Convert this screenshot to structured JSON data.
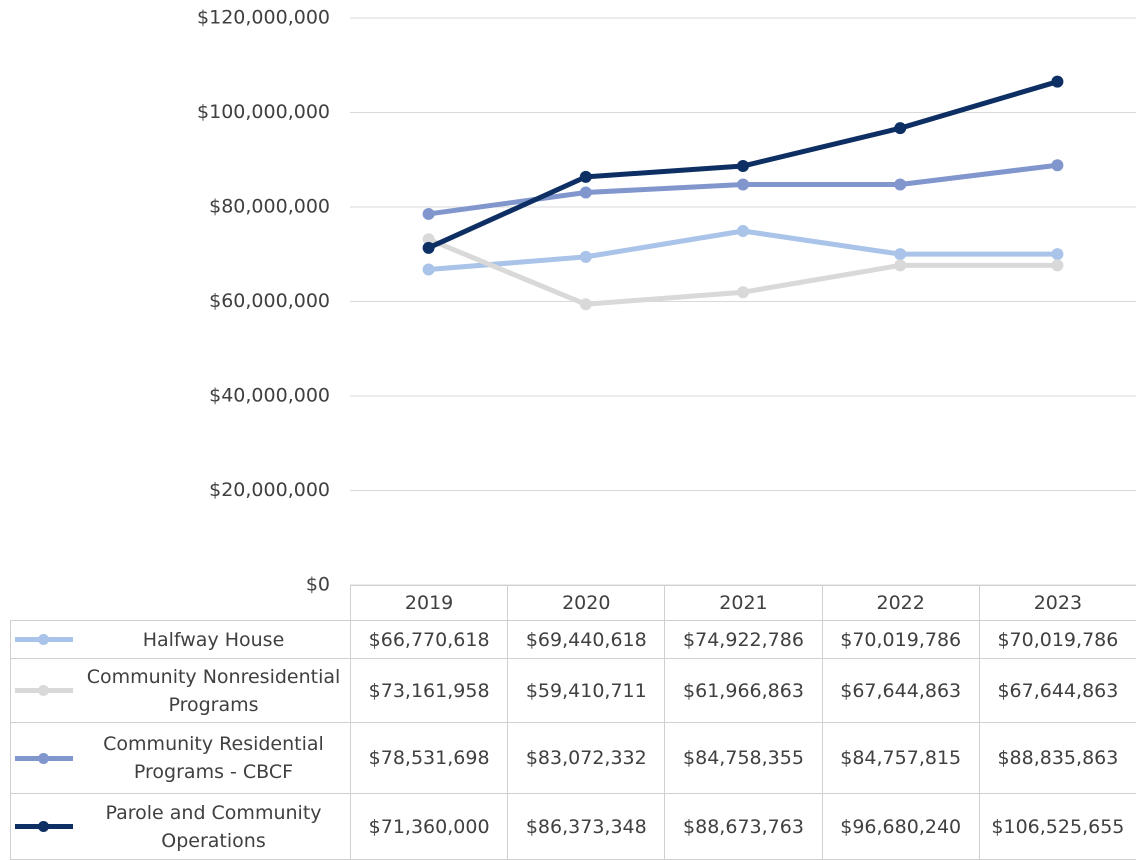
{
  "chart_data": {
    "type": "line",
    "categories": [
      "2019",
      "2020",
      "2021",
      "2022",
      "2023"
    ],
    "series": [
      {
        "name": "Halfway House",
        "color": "#a9c4e8",
        "values": [
          66770618,
          69440618,
          74922786,
          70019786,
          70019786
        ],
        "value_labels": [
          "$66,770,618",
          "$69,440,618",
          "$74,922,786",
          "$70,019,786",
          "$70,019,786"
        ]
      },
      {
        "name": "Community Nonresidential Programs",
        "color": "#d9d9d9",
        "values": [
          73161958,
          59410711,
          61966863,
          67644863,
          67644863
        ],
        "value_labels": [
          "$73,161,958",
          "$59,410,711",
          "$61,966,863",
          "$67,644,863",
          "$67,644,863"
        ]
      },
      {
        "name": "Community Residential Programs - CBCF",
        "color": "#8096cd",
        "values": [
          78531698,
          83072332,
          84758355,
          84757815,
          88835863
        ],
        "value_labels": [
          "$78,531,698",
          "$83,072,332",
          "$84,758,355",
          "$84,757,815",
          "$88,835,863"
        ]
      },
      {
        "name": "Parole and Community Operations",
        "color": "#0d2f63",
        "values": [
          71360000,
          86373348,
          88673763,
          96680240,
          106525655
        ],
        "value_labels": [
          "$71,360,000",
          "$86,373,348",
          "$88,673,763",
          "$96,680,240",
          "$106,525,655"
        ]
      }
    ],
    "ylim": [
      0,
      120000000
    ],
    "yticks": [
      {
        "value": 0,
        "label": "$0"
      },
      {
        "value": 20000000,
        "label": "$20,000,000"
      },
      {
        "value": 40000000,
        "label": "$40,000,000"
      },
      {
        "value": 60000000,
        "label": "$60,000,000"
      },
      {
        "value": 80000000,
        "label": "$80,000,000"
      },
      {
        "value": 100000000,
        "label": "$100,000,000"
      },
      {
        "value": 120000000,
        "label": "$120,000,000"
      }
    ],
    "grid": true
  }
}
